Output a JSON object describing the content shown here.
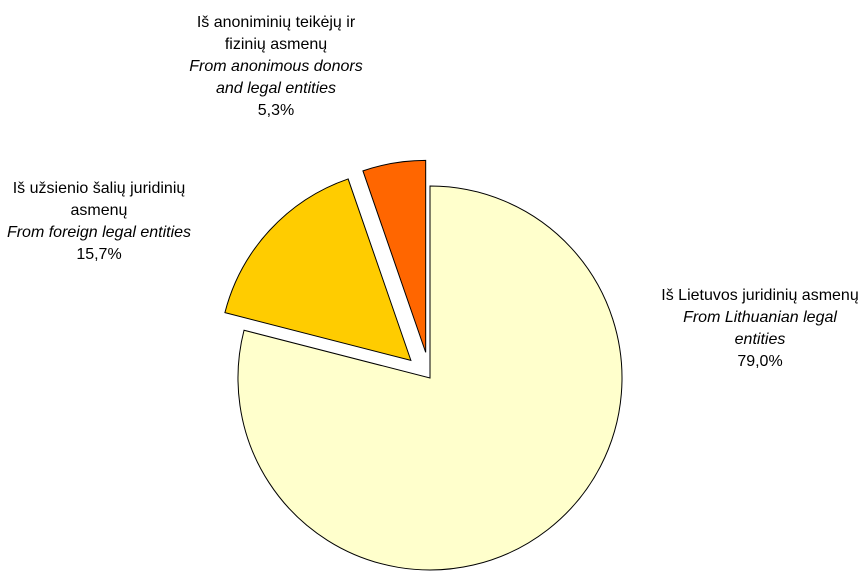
{
  "chart_data": {
    "type": "pie",
    "title": "",
    "slices": [
      {
        "lt": "Iš Lietuvos juridinių asmenų",
        "en": "From Lithuanian legal entities",
        "pct_label": "79,0%",
        "value": 79.0,
        "color": "#FFFFCC",
        "exploded": false
      },
      {
        "lt": "Iš užsienio šalių juridinių asmenų",
        "en": "From foreign legal entities",
        "pct_label": "15,7%",
        "value": 15.7,
        "color": "#FFCC00",
        "exploded": true
      },
      {
        "lt": "Iš anoniminių teikėjų ir fizinių asmenų",
        "en": "From anonimous donors and legal entities",
        "pct_label": "5,3%",
        "value": 5.3,
        "color": "#FF6600",
        "exploded": true
      }
    ],
    "start_angle_deg": 0,
    "direction": "clockwise",
    "stroke_color": "#000000"
  }
}
